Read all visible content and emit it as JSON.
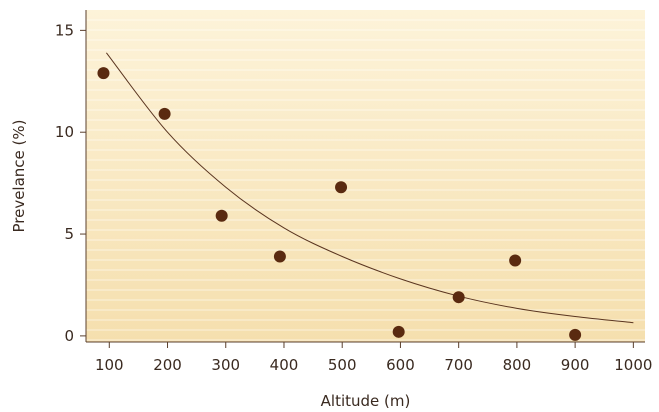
{
  "chart_data": {
    "type": "scatter",
    "title": "",
    "xlabel": "Altitude (m)",
    "ylabel": "Prevelance (%)",
    "xlim": [
      60,
      1020
    ],
    "ylim": [
      -0.3,
      16
    ],
    "x_ticks": [
      100,
      200,
      300,
      400,
      500,
      600,
      700,
      800,
      900,
      1000
    ],
    "y_ticks": [
      0,
      5,
      10,
      15
    ],
    "grid": false,
    "legend": "none",
    "series": [
      {
        "points": [
          {
            "x": 90,
            "y": 12.9
          },
          {
            "x": 195,
            "y": 10.9
          },
          {
            "x": 293,
            "y": 5.9
          },
          {
            "x": 393,
            "y": 3.9
          },
          {
            "x": 498,
            "y": 7.3
          },
          {
            "x": 597,
            "y": 0.2
          },
          {
            "x": 700,
            "y": 1.9
          },
          {
            "x": 797,
            "y": 3.7
          },
          {
            "x": 900,
            "y": 0.05
          }
        ],
        "color": "#5a2a10"
      }
    ],
    "trendline": {
      "type": "exponential",
      "points": [
        {
          "x": 95,
          "y": 13.9
        },
        {
          "x": 200,
          "y": 10.0
        },
        {
          "x": 300,
          "y": 7.3
        },
        {
          "x": 400,
          "y": 5.3
        },
        {
          "x": 500,
          "y": 3.9
        },
        {
          "x": 600,
          "y": 2.8
        },
        {
          "x": 700,
          "y": 1.95
        },
        {
          "x": 800,
          "y": 1.35
        },
        {
          "x": 900,
          "y": 0.95
        },
        {
          "x": 1000,
          "y": 0.65
        }
      ],
      "color": "#5a3520"
    },
    "colors": {
      "background_top": "#fdf3d9",
      "background_bottom": "#f5dfae",
      "axis": "#5a3f2c"
    }
  }
}
